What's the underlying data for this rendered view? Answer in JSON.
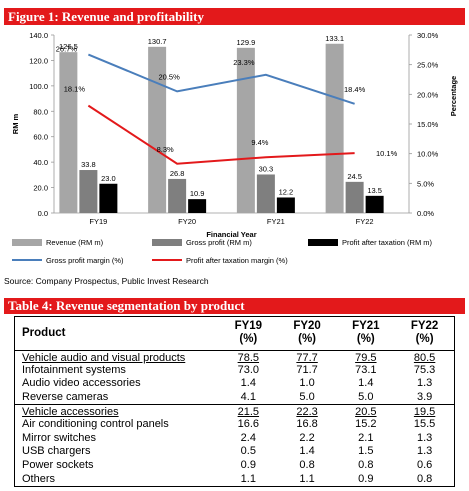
{
  "figure_title": "Figure 1: Revenue and profitability",
  "source": "Source: Company Prospectus, Public Invest Research",
  "table_title": "Table 4: Revenue segmentation by product",
  "chart_data": {
    "type": "bar",
    "title": "",
    "categories": [
      "FY19",
      "FY20",
      "FY21",
      "FY22"
    ],
    "xlabel": "Financial Year",
    "ylabel": "RM m",
    "y2label": "Percentage",
    "ylim": [
      0,
      140
    ],
    "y_ticks": [
      "0.0",
      "20.0",
      "40.0",
      "60.0",
      "80.0",
      "100.0",
      "120.0",
      "140.0"
    ],
    "y2lim": [
      0,
      30
    ],
    "y2_ticks": [
      "0.0%",
      "5.0%",
      "10.0%",
      "15.0%",
      "20.0%",
      "25.0%",
      "30.0%"
    ],
    "grid": false,
    "legend_position": "bottom",
    "series": [
      {
        "name": "Revenue (RM m)",
        "kind": "bar",
        "axis": "left",
        "color": "#a6a6a6",
        "values": [
          126.5,
          130.7,
          129.9,
          133.1
        ],
        "labels": [
          "126.5",
          "130.7",
          "129.9",
          "133.1"
        ]
      },
      {
        "name": "Gross profit (RM m)",
        "kind": "bar",
        "axis": "left",
        "color": "#7f7f7f",
        "values": [
          33.8,
          26.8,
          30.3,
          24.5
        ],
        "labels": [
          "33.8",
          "26.8",
          "30.3",
          "24.5"
        ]
      },
      {
        "name": "Profit after taxation (RM m)",
        "kind": "bar",
        "axis": "left",
        "color": "#000000",
        "values": [
          23.0,
          10.9,
          12.2,
          13.5
        ],
        "labels": [
          "23.0",
          "10.9",
          "12.2",
          "13.5"
        ]
      },
      {
        "name": "Gross profit margin (%)",
        "kind": "line",
        "axis": "right",
        "color": "#4a7ebb",
        "values": [
          26.7,
          20.5,
          23.3,
          18.4
        ],
        "labels": [
          "26.7%",
          "20.5%",
          "23.3%",
          "18.4%"
        ]
      },
      {
        "name": "Profit after taxation margin  (%)",
        "kind": "line",
        "axis": "right",
        "color": "#e3191b",
        "values": [
          18.1,
          8.3,
          9.4,
          10.1
        ],
        "labels": [
          "18.1%",
          "8.3%",
          "9.4%",
          "10.1%"
        ]
      }
    ]
  },
  "table": {
    "columns": [
      "Product",
      "FY19\n(%)",
      "FY20\n(%)",
      "FY21\n(%)",
      "FY22\n(%)"
    ],
    "col_top": [
      "FY19",
      "FY20",
      "FY21",
      "FY22"
    ],
    "col_unit": [
      "(%)",
      "(%)",
      "(%)",
      "(%)"
    ],
    "rows": [
      {
        "name": "Vehicle audio and visual products",
        "values": [
          "78.5",
          "77.7",
          "79.5",
          "80.5"
        ],
        "group": true
      },
      {
        "name": "Infotainment systems",
        "values": [
          "73.0",
          "71.7",
          "73.1",
          "75.3"
        ]
      },
      {
        "name": "Audio video accessories",
        "values": [
          "1.4",
          "1.0",
          "1.4",
          "1.3"
        ]
      },
      {
        "name": "Reverse cameras",
        "values": [
          "4.1",
          "5.0",
          "5.0",
          "3.9"
        ]
      },
      {
        "name": "Vehicle accessories",
        "values": [
          "21.5",
          "22.3",
          "20.5",
          "19.5"
        ],
        "group": true
      },
      {
        "name": "Air conditioning control panels",
        "values": [
          "16.6",
          "16.8",
          "15.2",
          "15.5"
        ]
      },
      {
        "name": "Mirror switches",
        "values": [
          "2.4",
          "2.2",
          "2.1",
          "1.3"
        ]
      },
      {
        "name": "USB chargers",
        "values": [
          "0.5",
          "1.4",
          "1.5",
          "1.3"
        ]
      },
      {
        "name": "Power sockets",
        "values": [
          "0.9",
          "0.8",
          "0.8",
          "0.6"
        ]
      },
      {
        "name": "Others",
        "values": [
          "1.1",
          "1.1",
          "0.9",
          "0.8"
        ]
      }
    ]
  }
}
